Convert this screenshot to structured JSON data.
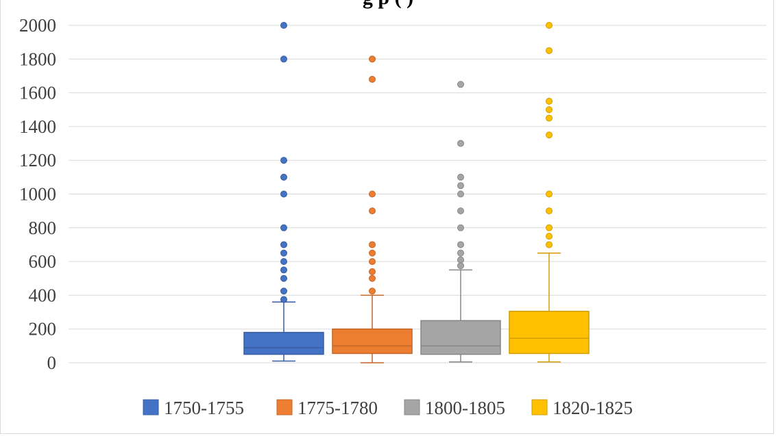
{
  "chart_data": {
    "type": "box",
    "title": "",
    "title_visible_fragment": "g      p                                    (      )",
    "xlabel": "",
    "ylabel": "",
    "ylim": [
      0,
      2000
    ],
    "yticks": [
      0,
      200,
      400,
      600,
      800,
      1000,
      1200,
      1400,
      1600,
      1800,
      2000
    ],
    "grid": true,
    "legend_position": "bottom",
    "series": [
      {
        "name": "1750-1755",
        "color": "#4472C4",
        "min": 10,
        "q1": 50,
        "median": 90,
        "q3": 180,
        "max": 360,
        "outliers": [
          375,
          425,
          500,
          550,
          600,
          650,
          700,
          800,
          1000,
          1100,
          1200,
          1800,
          2000
        ]
      },
      {
        "name": "1775-1780",
        "color": "#ED7D31",
        "min": 0,
        "q1": 55,
        "median": 100,
        "q3": 200,
        "max": 400,
        "outliers": [
          425,
          500,
          540,
          600,
          650,
          700,
          900,
          1000,
          1680,
          1800
        ]
      },
      {
        "name": "1800-1805",
        "color": "#A5A5A5",
        "min": 5,
        "q1": 50,
        "median": 100,
        "q3": 250,
        "max": 550,
        "outliers": [
          575,
          610,
          650,
          700,
          800,
          900,
          1000,
          1050,
          1100,
          1300,
          1650
        ]
      },
      {
        "name": "1820-1825",
        "color": "#FFC000",
        "min": 5,
        "q1": 55,
        "median": 145,
        "q3": 305,
        "max": 650,
        "outliers": [
          700,
          750,
          800,
          900,
          1000,
          1350,
          1450,
          1500,
          1550,
          1850,
          2000
        ]
      }
    ]
  }
}
